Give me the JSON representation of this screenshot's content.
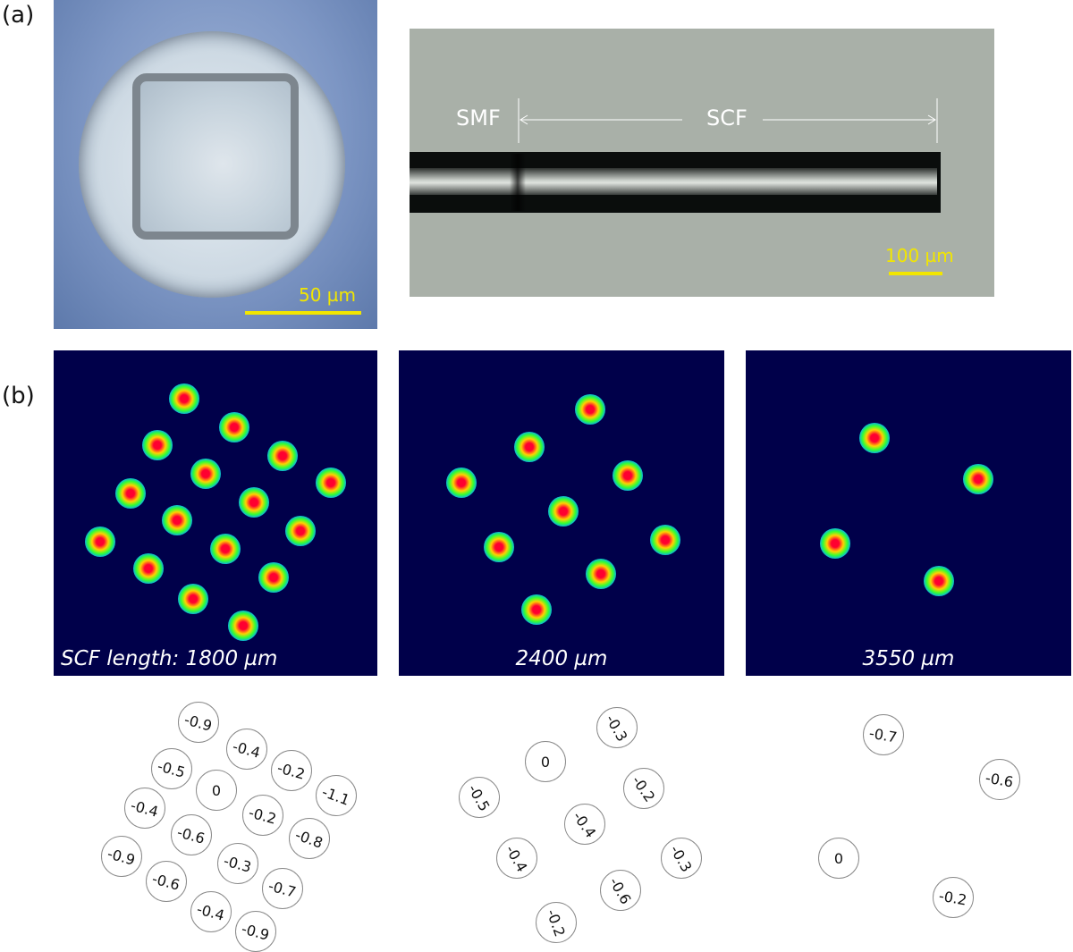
{
  "panels": {
    "a_label": "(a)",
    "b_label": "(b)"
  },
  "cross_section": {
    "scale_label": "50 µm"
  },
  "side_view": {
    "smf_label": "SMF",
    "scf_label": "SCF",
    "scale_label": "100 µm"
  },
  "mode_patterns": [
    {
      "caption": "SCF length: 1800 µm",
      "spot_count": 16
    },
    {
      "caption": "2400 µm",
      "spot_count": 9
    },
    {
      "caption": "3550 µm",
      "spot_count": 4
    }
  ],
  "phase_maps": [
    {
      "values": [
        "-0.9",
        "-0.4",
        "-0.5",
        "-0.2",
        "0",
        "-1.1",
        "-0.4",
        "-0.2",
        "-0.6",
        "-0.8",
        "-0.9",
        "-0.3",
        "-0.6",
        "-0.7",
        "-0.4",
        "-0.9"
      ]
    },
    {
      "values": [
        "-0.3",
        "0",
        "-0.2",
        "-0.5",
        "-0.4",
        "-0.3",
        "-0.4",
        "-0.6",
        "-0.2"
      ]
    },
    {
      "values": [
        "-0.7",
        "-0.6",
        "0",
        "-0.2"
      ]
    }
  ]
}
